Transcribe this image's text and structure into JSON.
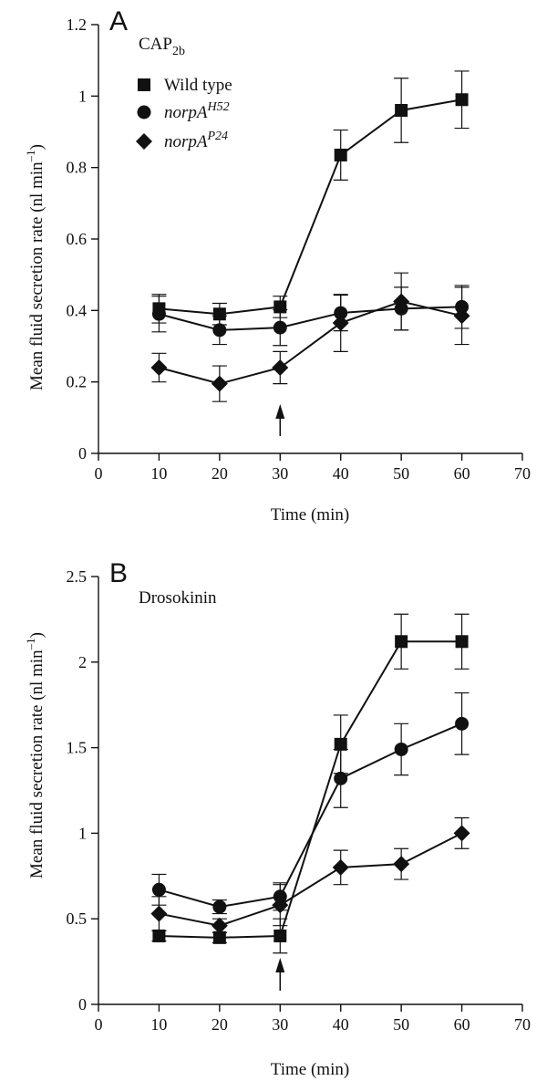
{
  "chart_data": [
    {
      "type": "line",
      "panel": "A",
      "annotation": "CAP",
      "annotation_sub": "2b",
      "xlabel": "Time (min)",
      "ylabel": "Mean fluid secretion rate (nl min",
      "ylabel_sup": "–1",
      "ylabel_close": ")",
      "xlim": [
        0,
        70
      ],
      "ylim": [
        0,
        1.2
      ],
      "xticks": [
        0,
        10,
        20,
        30,
        40,
        50,
        60,
        70
      ],
      "xtick_labels": [
        "0",
        "10",
        "20",
        "30",
        "40",
        "50",
        "60",
        "70"
      ],
      "yticks": [
        0,
        0.2,
        0.4,
        0.6,
        0.8,
        1.0,
        1.2
      ],
      "ytick_labels": [
        "0",
        "0.2",
        "0.4",
        "0.6",
        "0.8",
        "1",
        "1.2"
      ],
      "arrow_x": 30,
      "legend_position": "top-left",
      "x": [
        10,
        20,
        30,
        40,
        50,
        60
      ],
      "series": [
        {
          "name": "Wild type",
          "marker": "square",
          "values": [
            0.405,
            0.39,
            0.41,
            0.835,
            0.96,
            0.99
          ],
          "errors": [
            0.04,
            0.03,
            0.03,
            0.07,
            0.09,
            0.08
          ]
        },
        {
          "name": "norpA",
          "name_sup": "H52",
          "italic": true,
          "marker": "circle",
          "values": [
            0.39,
            0.345,
            0.352,
            0.393,
            0.405,
            0.41
          ],
          "errors": [
            0.05,
            0.04,
            0.05,
            0.05,
            0.06,
            0.06
          ]
        },
        {
          "name": "norpA",
          "name_sup": "P24",
          "italic": true,
          "marker": "diamond",
          "values": [
            0.24,
            0.195,
            0.24,
            0.365,
            0.425,
            0.385
          ],
          "errors": [
            0.04,
            0.05,
            0.045,
            0.08,
            0.08,
            0.08
          ]
        }
      ]
    },
    {
      "type": "line",
      "panel": "B",
      "annotation": "Drosokinin",
      "xlabel": "Time (min)",
      "ylabel": "Mean fluid secretion rate (nl min",
      "ylabel_sup": "–1",
      "ylabel_close": ")",
      "xlim": [
        0,
        70
      ],
      "ylim": [
        0,
        2.5
      ],
      "xticks": [
        0,
        10,
        20,
        30,
        40,
        50,
        60,
        70
      ],
      "xtick_labels": [
        "0",
        "10",
        "20",
        "30",
        "40",
        "50",
        "60",
        "70"
      ],
      "yticks": [
        0,
        0.5,
        1.0,
        1.5,
        2.0,
        2.5
      ],
      "ytick_labels": [
        "0",
        "0.5",
        "1",
        "1.5",
        "2",
        "2.5"
      ],
      "arrow_x": 30,
      "x": [
        10,
        20,
        30,
        40,
        50,
        60
      ],
      "series": [
        {
          "name": "Wild type",
          "marker": "square",
          "values": [
            0.4,
            0.39,
            0.4,
            1.52,
            2.12,
            2.12
          ],
          "errors": [
            0.03,
            0.03,
            0.1,
            0.17,
            0.16,
            0.16
          ]
        },
        {
          "name": "norpA",
          "name_sup": "H52",
          "marker": "circle",
          "values": [
            0.67,
            0.57,
            0.63,
            1.32,
            1.49,
            1.64
          ],
          "errors": [
            0.09,
            0.04,
            0.08,
            0.17,
            0.15,
            0.18
          ]
        },
        {
          "name": "norpA",
          "name_sup": "P24",
          "marker": "diamond",
          "values": [
            0.53,
            0.46,
            0.58,
            0.8,
            0.82,
            1.0
          ],
          "errors": [
            0.1,
            0.04,
            0.12,
            0.1,
            0.09,
            0.09
          ]
        }
      ]
    }
  ]
}
